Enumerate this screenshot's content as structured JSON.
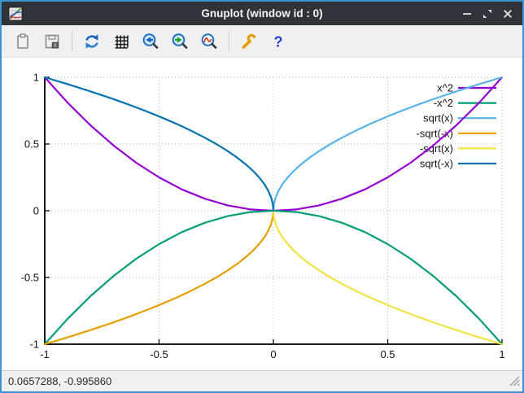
{
  "window": {
    "title": "Gnuplot (window id : 0)"
  },
  "toolbar": {
    "save_badge": "I",
    "help_glyph": "?"
  },
  "statusbar": {
    "coordinates": "0.0657288, -0.995860"
  },
  "chart_data": {
    "type": "line",
    "title": "",
    "xlabel": "",
    "ylabel": "",
    "xlim": [
      -1,
      1
    ],
    "ylim": [
      -1,
      1
    ],
    "xticks": [
      -1,
      -0.5,
      0,
      0.5,
      1
    ],
    "yticks": [
      -1,
      -0.5,
      0,
      0.5,
      1
    ],
    "xtick_labels": [
      "-1",
      "-0.5",
      "0",
      "0.5",
      "1"
    ],
    "ytick_labels": [
      "-1",
      "-0.5",
      "0",
      "0.5",
      "1"
    ],
    "grid": true,
    "grid_style": "dotted",
    "border": "left-bottom-only",
    "legend_position": "top-right",
    "series": [
      {
        "name": "x^2",
        "color": "#9400d3",
        "points": [
          [
            -1,
            1
          ],
          [
            -0.9,
            0.81
          ],
          [
            -0.8,
            0.64
          ],
          [
            -0.7,
            0.49
          ],
          [
            -0.6,
            0.36
          ],
          [
            -0.5,
            0.25
          ],
          [
            -0.4,
            0.16
          ],
          [
            -0.3,
            0.09
          ],
          [
            -0.2,
            0.04
          ],
          [
            -0.1,
            0.01
          ],
          [
            0,
            0
          ],
          [
            0.1,
            0.01
          ],
          [
            0.2,
            0.04
          ],
          [
            0.3,
            0.09
          ],
          [
            0.4,
            0.16
          ],
          [
            0.5,
            0.25
          ],
          [
            0.6,
            0.36
          ],
          [
            0.7,
            0.49
          ],
          [
            0.8,
            0.64
          ],
          [
            0.9,
            0.81
          ],
          [
            1,
            1
          ]
        ]
      },
      {
        "name": "-x^2",
        "color": "#009e73",
        "points": [
          [
            -1,
            -1
          ],
          [
            -0.9,
            -0.81
          ],
          [
            -0.8,
            -0.64
          ],
          [
            -0.7,
            -0.49
          ],
          [
            -0.6,
            -0.36
          ],
          [
            -0.5,
            -0.25
          ],
          [
            -0.4,
            -0.16
          ],
          [
            -0.3,
            -0.09
          ],
          [
            -0.2,
            -0.04
          ],
          [
            -0.1,
            -0.01
          ],
          [
            0,
            0
          ],
          [
            0.1,
            -0.01
          ],
          [
            0.2,
            -0.04
          ],
          [
            0.3,
            -0.09
          ],
          [
            0.4,
            -0.16
          ],
          [
            0.5,
            -0.25
          ],
          [
            0.6,
            -0.36
          ],
          [
            0.7,
            -0.49
          ],
          [
            0.8,
            -0.64
          ],
          [
            0.9,
            -0.81
          ],
          [
            1,
            -1
          ]
        ]
      },
      {
        "name": "sqrt(x)",
        "color": "#56b4e9",
        "points": [
          [
            0,
            0
          ],
          [
            0.0025,
            0.05
          ],
          [
            0.01,
            0.1
          ],
          [
            0.0225,
            0.15
          ],
          [
            0.04,
            0.2
          ],
          [
            0.0625,
            0.25
          ],
          [
            0.09,
            0.3
          ],
          [
            0.1225,
            0.35
          ],
          [
            0.16,
            0.4
          ],
          [
            0.2025,
            0.45
          ],
          [
            0.25,
            0.5
          ],
          [
            0.3025,
            0.55
          ],
          [
            0.36,
            0.6
          ],
          [
            0.4225,
            0.65
          ],
          [
            0.49,
            0.7
          ],
          [
            0.5625,
            0.75
          ],
          [
            0.64,
            0.8
          ],
          [
            0.7225,
            0.85
          ],
          [
            0.81,
            0.9
          ],
          [
            0.9025,
            0.95
          ],
          [
            1,
            1
          ]
        ]
      },
      {
        "name": "-sqrt(-x)",
        "color": "#e69f00",
        "points": [
          [
            -1,
            -1
          ],
          [
            -0.9025,
            -0.95
          ],
          [
            -0.81,
            -0.9
          ],
          [
            -0.7225,
            -0.85
          ],
          [
            -0.64,
            -0.8
          ],
          [
            -0.5625,
            -0.75
          ],
          [
            -0.49,
            -0.7
          ],
          [
            -0.4225,
            -0.65
          ],
          [
            -0.36,
            -0.6
          ],
          [
            -0.3025,
            -0.55
          ],
          [
            -0.25,
            -0.5
          ],
          [
            -0.2025,
            -0.45
          ],
          [
            -0.16,
            -0.4
          ],
          [
            -0.1225,
            -0.35
          ],
          [
            -0.09,
            -0.3
          ],
          [
            -0.0625,
            -0.25
          ],
          [
            -0.04,
            -0.2
          ],
          [
            -0.0225,
            -0.15
          ],
          [
            -0.01,
            -0.1
          ],
          [
            -0.0025,
            -0.05
          ],
          [
            0,
            0
          ]
        ]
      },
      {
        "name": "-sqrt(x)",
        "color": "#f0e442",
        "points": [
          [
            0,
            0
          ],
          [
            0.0025,
            -0.05
          ],
          [
            0.01,
            -0.1
          ],
          [
            0.0225,
            -0.15
          ],
          [
            0.04,
            -0.2
          ],
          [
            0.0625,
            -0.25
          ],
          [
            0.09,
            -0.3
          ],
          [
            0.1225,
            -0.35
          ],
          [
            0.16,
            -0.4
          ],
          [
            0.2025,
            -0.45
          ],
          [
            0.25,
            -0.5
          ],
          [
            0.3025,
            -0.55
          ],
          [
            0.36,
            -0.6
          ],
          [
            0.4225,
            -0.65
          ],
          [
            0.49,
            -0.7
          ],
          [
            0.5625,
            -0.75
          ],
          [
            0.64,
            -0.8
          ],
          [
            0.7225,
            -0.85
          ],
          [
            0.81,
            -0.9
          ],
          [
            0.9025,
            -0.95
          ],
          [
            1,
            -1
          ]
        ]
      },
      {
        "name": "sqrt(-x)",
        "color": "#0072b2",
        "points": [
          [
            -1,
            1
          ],
          [
            -0.9025,
            0.95
          ],
          [
            -0.81,
            0.9
          ],
          [
            -0.7225,
            0.85
          ],
          [
            -0.64,
            0.8
          ],
          [
            -0.5625,
            0.75
          ],
          [
            -0.49,
            0.7
          ],
          [
            -0.4225,
            0.65
          ],
          [
            -0.36,
            0.6
          ],
          [
            -0.3025,
            0.55
          ],
          [
            -0.25,
            0.5
          ],
          [
            -0.2025,
            0.45
          ],
          [
            -0.16,
            0.4
          ],
          [
            -0.1225,
            0.35
          ],
          [
            -0.09,
            0.3
          ],
          [
            -0.0625,
            0.25
          ],
          [
            -0.04,
            0.2
          ],
          [
            -0.0225,
            0.15
          ],
          [
            -0.01,
            0.1
          ],
          [
            -0.0025,
            0.05
          ],
          [
            0,
            0
          ]
        ]
      }
    ]
  }
}
